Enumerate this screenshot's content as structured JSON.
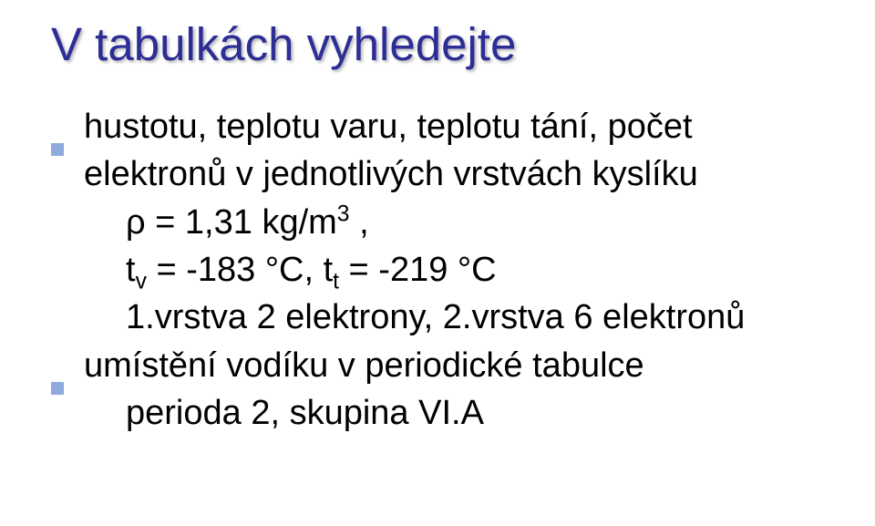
{
  "colors": {
    "title": "#2d2d96",
    "body": "#000000",
    "bullet": "#8faadc",
    "background": "#ffffff"
  },
  "title": "V tabulkách vyhledejte",
  "items": [
    {
      "type": "bullet",
      "text": "hustotu, teplotu varu, teplotu tání, počet elektronů v jednotlivých vrstvách kyslíku"
    },
    {
      "type": "indent",
      "segments": [
        {
          "t": "ρ = 1,31 kg/m"
        },
        {
          "t": "3",
          "sup": true
        },
        {
          "t": " ,"
        }
      ]
    },
    {
      "type": "indent",
      "segments": [
        {
          "t": "t"
        },
        {
          "t": "v",
          "sub": true
        },
        {
          "t": " = -183 °C, t"
        },
        {
          "t": "t",
          "sub": true
        },
        {
          "t": " = -219 °C"
        }
      ]
    },
    {
      "type": "indent",
      "text": "1.vrstva 2 elektrony, 2.vrstva 6 elektronů"
    },
    {
      "type": "bullet",
      "text": "umístění vodíku v periodické tabulce"
    },
    {
      "type": "indent",
      "text": "perioda 2, skupina VI.A"
    }
  ]
}
